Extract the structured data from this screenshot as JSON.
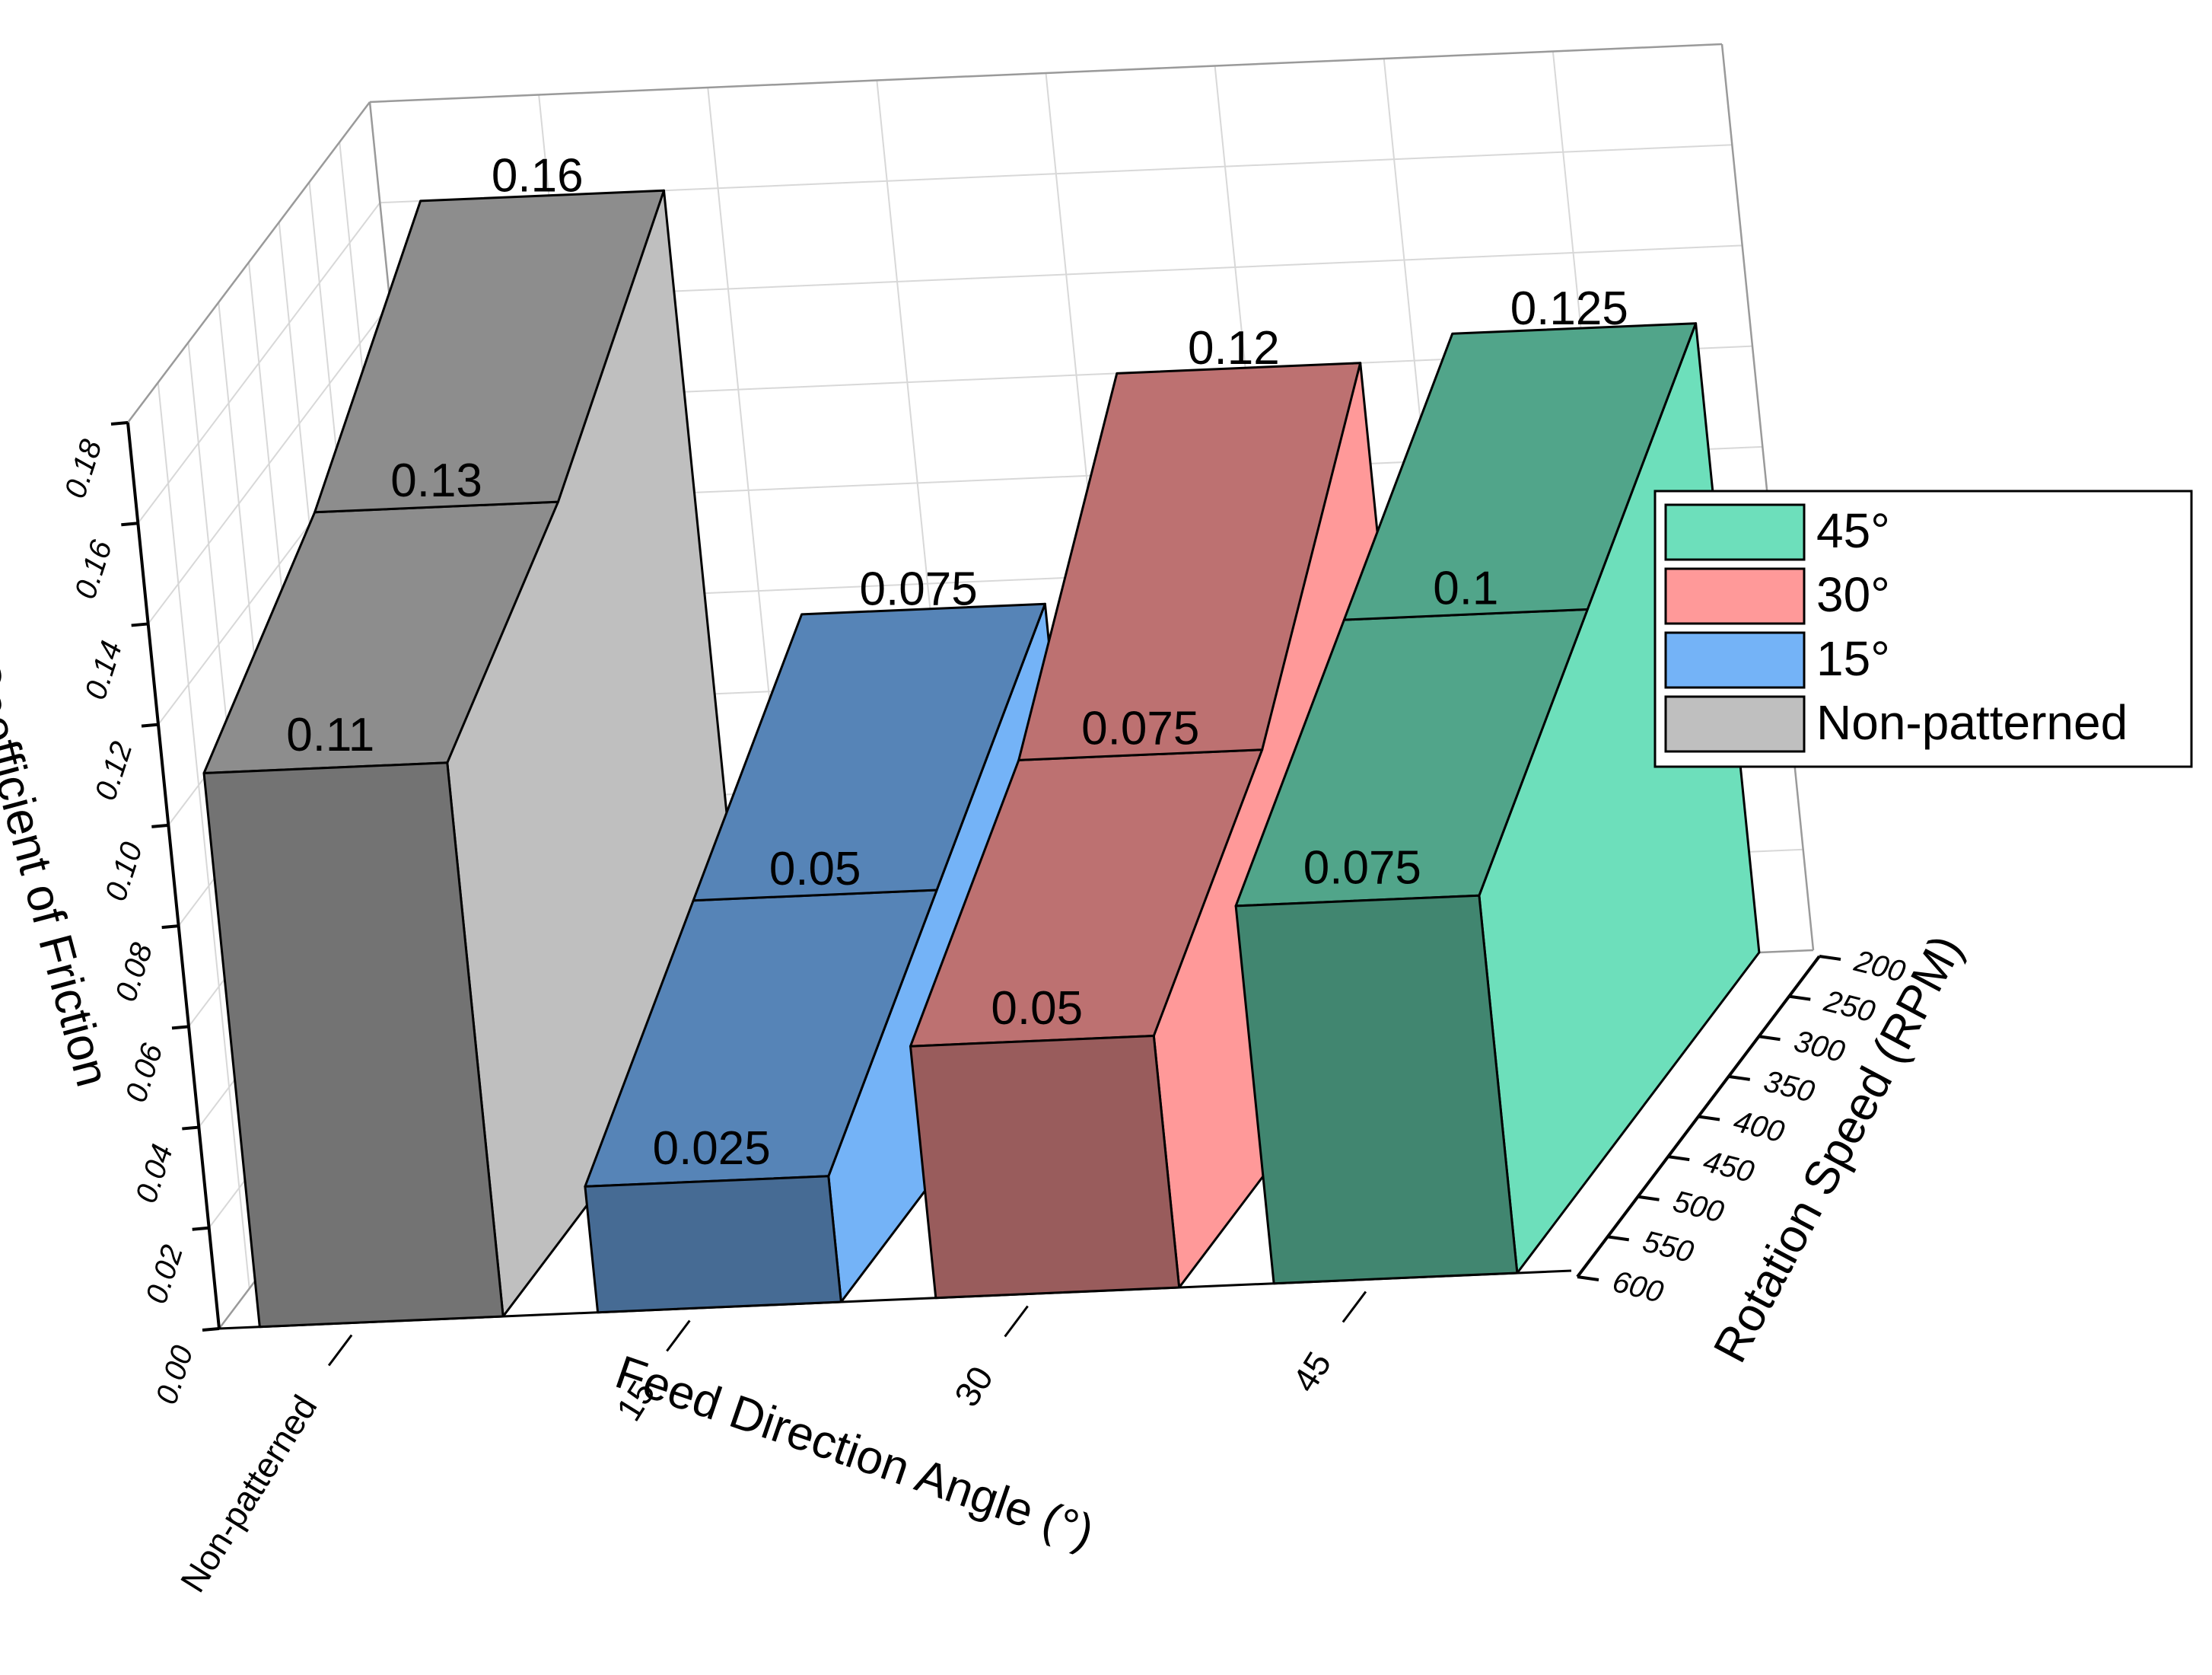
{
  "chart_data": {
    "type": "bar3d",
    "zlabel": "Coefficient of Friction",
    "xlabel": "Feed Direction Angle (°)",
    "ylabel": "Rotation Speed (RPM)",
    "zlim": [
      0,
      0.18
    ],
    "z_ticks": [
      "0.00",
      "0.02",
      "0.04",
      "0.06",
      "0.08",
      "0.10",
      "0.12",
      "0.14",
      "0.16",
      "0.18"
    ],
    "y_ticks": [
      "200",
      "250",
      "300",
      "350",
      "400",
      "450",
      "500",
      "550",
      "600"
    ],
    "categories": [
      "Non-patterned",
      "15",
      "30",
      "45"
    ],
    "series": [
      {
        "name": "Non-patterned",
        "color": "#bfbfbf",
        "values": [
          {
            "rpm": 600,
            "cof": 0.11
          },
          {
            "rpm": 400,
            "cof": 0.13
          },
          {
            "rpm": 200,
            "cof": 0.16
          }
        ],
        "labels": [
          "0.11",
          "0.13",
          "0.16"
        ]
      },
      {
        "name": "15°",
        "color": "#74b3f7",
        "values": [
          {
            "rpm": 600,
            "cof": 0.025
          },
          {
            "rpm": 400,
            "cof": 0.05
          },
          {
            "rpm": 200,
            "cof": 0.075
          }
        ],
        "labels": [
          "0.025",
          "0.05",
          "0.075"
        ]
      },
      {
        "name": "30°",
        "color": "#ff9999",
        "values": [
          {
            "rpm": 600,
            "cof": 0.05
          },
          {
            "rpm": 400,
            "cof": 0.075
          },
          {
            "rpm": 200,
            "cof": 0.12
          }
        ],
        "labels": [
          "0.05",
          "0.075",
          "0.12"
        ]
      },
      {
        "name": "45°",
        "color": "#6ddfbb",
        "values": [
          {
            "rpm": 600,
            "cof": 0.075
          },
          {
            "rpm": 400,
            "cof": 0.1
          },
          {
            "rpm": 200,
            "cof": 0.125
          }
        ],
        "labels": [
          "0.075",
          "0.1",
          "0.125"
        ]
      }
    ],
    "legend": {
      "placement": "right",
      "items": [
        {
          "label": "45°",
          "color": "#6ddfbb"
        },
        {
          "label": "30°",
          "color": "#ff9999"
        },
        {
          "label": "15°",
          "color": "#74b3f7"
        },
        {
          "label": "Non-patterned",
          "color": "#bfbfbf"
        }
      ]
    }
  }
}
